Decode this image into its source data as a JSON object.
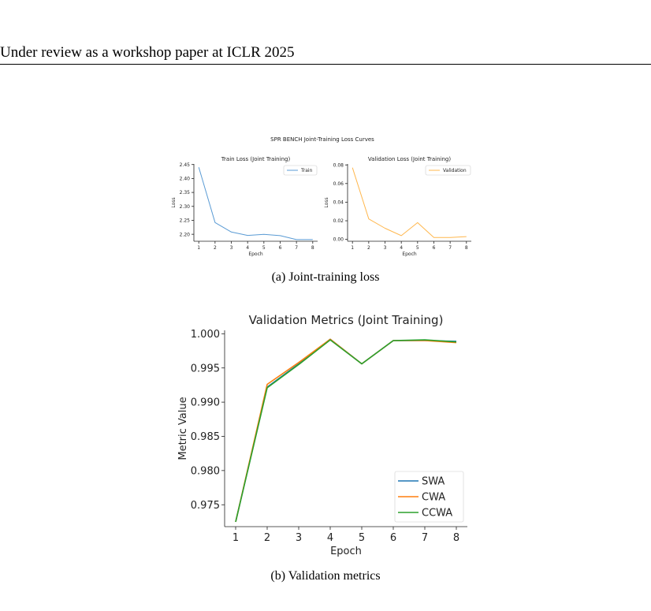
{
  "header": {
    "text": "Under review as a workshop paper at ICLR 2025"
  },
  "figure_a": {
    "suptitle": "SPR BENCH Joint-Training Loss Curves",
    "caption": "(a)  Joint-training loss"
  },
  "figure_b": {
    "caption": "(b)  Validation metrics"
  },
  "chart_data": [
    {
      "type": "line",
      "title": "Train Loss (Joint Training)",
      "xlabel": "Epoch",
      "ylabel": "Loss",
      "x": [
        1,
        2,
        3,
        4,
        5,
        6,
        7,
        8
      ],
      "xticks": [
        "1",
        "2",
        "3",
        "4",
        "5",
        "6",
        "7",
        "8"
      ],
      "xlim": [
        0.7,
        8.3
      ],
      "ylim": [
        2.175,
        2.452
      ],
      "yticks": [
        "2.20",
        "2.25",
        "2.30",
        "2.35",
        "2.40",
        "2.45"
      ],
      "ytick_values": [
        2.2,
        2.25,
        2.3,
        2.35,
        2.4,
        2.45
      ],
      "legend": "top-right",
      "grid": false,
      "series": [
        {
          "name": "Train",
          "color": "#5a9bd4",
          "values": [
            2.44,
            2.242,
            2.208,
            2.196,
            2.2,
            2.195,
            2.181,
            2.181
          ]
        }
      ]
    },
    {
      "type": "line",
      "title": "Validation Loss (Joint Training)",
      "xlabel": "Epoch",
      "ylabel": "Loss",
      "x": [
        1,
        2,
        3,
        4,
        5,
        6,
        7,
        8
      ],
      "xticks": [
        "1",
        "2",
        "3",
        "4",
        "5",
        "6",
        "7",
        "8"
      ],
      "xlim": [
        0.7,
        8.3
      ],
      "ylim": [
        -0.002,
        0.081
      ],
      "yticks": [
        "0.00",
        "0.02",
        "0.04",
        "0.06",
        "0.08"
      ],
      "ytick_values": [
        0.0,
        0.02,
        0.04,
        0.06,
        0.08
      ],
      "legend": "top-right",
      "grid": false,
      "series": [
        {
          "name": "Validation",
          "color": "#ffb74d",
          "values": [
            0.077,
            0.022,
            0.012,
            0.004,
            0.018,
            0.002,
            0.002,
            0.003
          ]
        }
      ]
    },
    {
      "type": "line",
      "title": "Validation Metrics (Joint Training)",
      "xlabel": "Epoch",
      "ylabel": "Metric Value",
      "x": [
        1,
        2,
        3,
        4,
        5,
        6,
        7,
        8
      ],
      "xticks": [
        "1",
        "2",
        "3",
        "4",
        "5",
        "6",
        "7",
        "8"
      ],
      "xlim": [
        0.65,
        8.35
      ],
      "ylim": [
        0.9718,
        1.0005
      ],
      "yticks": [
        "0.975",
        "0.980",
        "0.985",
        "0.990",
        "0.995",
        "1.000"
      ],
      "ytick_values": [
        0.975,
        0.98,
        0.985,
        0.99,
        0.995,
        1.0
      ],
      "legend": "bottom-right",
      "grid": false,
      "series": [
        {
          "name": "SWA",
          "color": "#1f77b4",
          "values": [
            0.9725,
            0.9922,
            0.9956,
            0.9992,
            0.9956,
            0.999,
            0.999,
            0.9989
          ]
        },
        {
          "name": "CWA",
          "color": "#ff7f0e",
          "values": [
            0.9725,
            0.9926,
            0.9958,
            0.9992,
            0.9956,
            0.999,
            0.999,
            0.9987
          ]
        },
        {
          "name": "CCWA",
          "color": "#2ca02c",
          "values": [
            0.9725,
            0.9921,
            0.9955,
            0.9991,
            0.9956,
            0.999,
            0.9991,
            0.9988
          ]
        }
      ]
    }
  ]
}
